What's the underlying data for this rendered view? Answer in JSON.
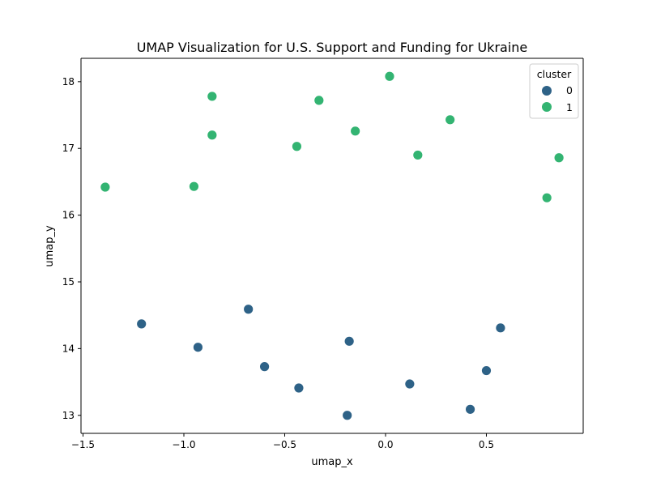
{
  "chart_data": {
    "type": "scatter",
    "title": "UMAP Visualization for U.S. Support and Funding for Ukraine",
    "xlabel": "umap_x",
    "ylabel": "umap_y",
    "xlim": [
      -1.51,
      0.98
    ],
    "ylim": [
      12.73,
      18.35
    ],
    "xticks": [
      -1.5,
      -1.0,
      -0.5,
      0.0,
      0.5
    ],
    "xtick_labels": [
      "−1.5",
      "−1.0",
      "−0.5",
      "0.0",
      "0.5"
    ],
    "yticks": [
      13,
      14,
      15,
      16,
      17,
      18
    ],
    "ytick_labels": [
      "13",
      "14",
      "15",
      "16",
      "17",
      "18"
    ],
    "grid": false,
    "legend": {
      "title": "cluster",
      "placement": "top-right",
      "entries": [
        {
          "label": "0",
          "color": "#2e6287"
        },
        {
          "label": "1",
          "color": "#33b472"
        }
      ]
    },
    "series": [
      {
        "name": "0",
        "color": "#2e6287",
        "points": [
          {
            "x": -1.21,
            "y": 14.37
          },
          {
            "x": -0.93,
            "y": 14.02
          },
          {
            "x": -0.68,
            "y": 14.59
          },
          {
            "x": -0.6,
            "y": 13.73
          },
          {
            "x": -0.43,
            "y": 13.41
          },
          {
            "x": -0.18,
            "y": 14.11
          },
          {
            "x": -0.19,
            "y": 13.0
          },
          {
            "x": 0.12,
            "y": 13.47
          },
          {
            "x": 0.42,
            "y": 13.09
          },
          {
            "x": 0.5,
            "y": 13.67
          },
          {
            "x": 0.57,
            "y": 14.31
          }
        ]
      },
      {
        "name": "1",
        "color": "#33b472",
        "points": [
          {
            "x": -1.39,
            "y": 16.42
          },
          {
            "x": -0.95,
            "y": 16.43
          },
          {
            "x": -0.86,
            "y": 17.78
          },
          {
            "x": -0.86,
            "y": 17.2
          },
          {
            "x": -0.44,
            "y": 17.03
          },
          {
            "x": -0.33,
            "y": 17.72
          },
          {
            "x": -0.15,
            "y": 17.26
          },
          {
            "x": 0.02,
            "y": 18.08
          },
          {
            "x": 0.16,
            "y": 16.9
          },
          {
            "x": 0.32,
            "y": 17.43
          },
          {
            "x": 0.8,
            "y": 16.26
          },
          {
            "x": 0.86,
            "y": 16.86
          }
        ]
      }
    ]
  }
}
